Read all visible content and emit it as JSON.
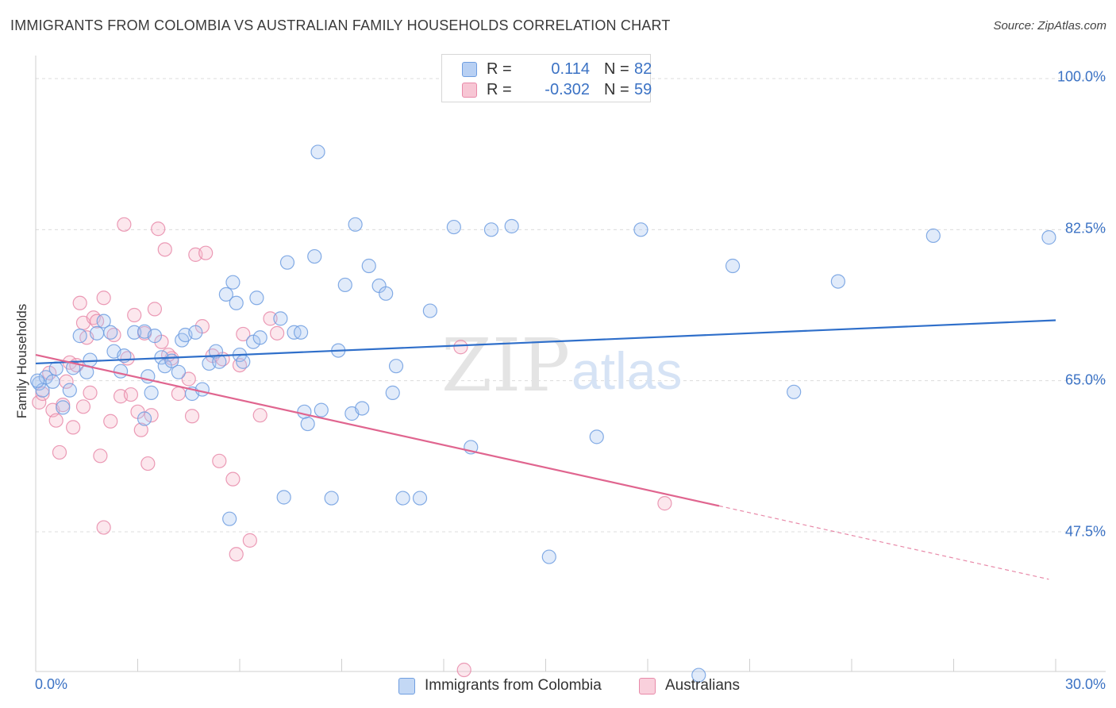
{
  "title": "IMMIGRANTS FROM COLOMBIA VS AUSTRALIAN FAMILY HOUSEHOLDS CORRELATION CHART",
  "source": "Source: ZipAtlas.com",
  "watermark": {
    "zip": "ZIP",
    "atlas": "atlas"
  },
  "legend": {
    "rows": [
      {
        "r_label": "R =",
        "r_value": "0.114",
        "n_label": "N =",
        "n_value": "82",
        "color": "#6f9ee0"
      },
      {
        "r_label": "R =",
        "r_value": "-0.302",
        "n_label": "N =",
        "n_value": "59",
        "color": "#e88aa9"
      }
    ]
  },
  "chart_data": {
    "type": "scatter",
    "xlabel": "",
    "ylabel": "Family Households",
    "xlim": [
      0,
      30
    ],
    "ylim": [
      30,
      100
    ],
    "x_tick_labels": [
      "0.0%",
      "30.0%"
    ],
    "y_ticks": [
      47.5,
      65.0,
      82.5,
      100.0
    ],
    "y_tick_labels": [
      "47.5%",
      "65.0%",
      "82.5%",
      "100.0%"
    ],
    "grid": "horizontal dashed",
    "legend_position": "bottom-center",
    "series": [
      {
        "name": "Immigrants from Colombia",
        "color": "#6f9ee0",
        "trend": {
          "x": [
            0,
            30
          ],
          "y": [
            67.0,
            72.0
          ]
        },
        "points": [
          [
            0.1,
            64.7
          ],
          [
            0.2,
            63.9
          ],
          [
            0.3,
            65.4
          ],
          [
            0.5,
            64.9
          ],
          [
            0.6,
            66.4
          ],
          [
            0.8,
            61.9
          ],
          [
            1.0,
            63.9
          ],
          [
            1.1,
            66.5
          ],
          [
            1.3,
            70.2
          ],
          [
            1.5,
            66.0
          ],
          [
            1.6,
            67.4
          ],
          [
            1.8,
            70.5
          ],
          [
            2.0,
            71.9
          ],
          [
            2.2,
            70.6
          ],
          [
            2.3,
            68.4
          ],
          [
            2.5,
            66.1
          ],
          [
            2.6,
            67.9
          ],
          [
            2.9,
            70.6
          ],
          [
            3.2,
            70.7
          ],
          [
            3.2,
            60.6
          ],
          [
            3.3,
            65.5
          ],
          [
            3.4,
            63.6
          ],
          [
            3.5,
            70.2
          ],
          [
            3.7,
            67.7
          ],
          [
            3.8,
            66.7
          ],
          [
            4.0,
            67.3
          ],
          [
            4.2,
            66.0
          ],
          [
            4.3,
            69.7
          ],
          [
            4.4,
            70.3
          ],
          [
            4.6,
            63.5
          ],
          [
            4.7,
            70.6
          ],
          [
            4.9,
            64.0
          ],
          [
            5.1,
            67.0
          ],
          [
            5.3,
            68.4
          ],
          [
            5.4,
            67.2
          ],
          [
            5.6,
            75.0
          ],
          [
            5.7,
            49.0
          ],
          [
            5.8,
            76.4
          ],
          [
            5.9,
            74.0
          ],
          [
            6.0,
            68.0
          ],
          [
            6.1,
            67.2
          ],
          [
            6.4,
            69.5
          ],
          [
            6.5,
            74.6
          ],
          [
            6.6,
            70.0
          ],
          [
            7.2,
            72.2
          ],
          [
            7.3,
            51.5
          ],
          [
            7.4,
            78.7
          ],
          [
            7.6,
            70.6
          ],
          [
            7.8,
            70.6
          ],
          [
            7.9,
            61.4
          ],
          [
            8.0,
            60.0
          ],
          [
            8.2,
            79.4
          ],
          [
            8.4,
            61.6
          ],
          [
            8.3,
            91.5
          ],
          [
            8.7,
            51.4
          ],
          [
            8.9,
            68.5
          ],
          [
            9.1,
            76.1
          ],
          [
            9.3,
            61.2
          ],
          [
            9.6,
            61.8
          ],
          [
            9.4,
            83.1
          ],
          [
            9.8,
            78.3
          ],
          [
            10.1,
            76.0
          ],
          [
            10.3,
            75.1
          ],
          [
            10.5,
            63.6
          ],
          [
            10.6,
            66.7
          ],
          [
            10.8,
            51.4
          ],
          [
            11.3,
            51.4
          ],
          [
            11.6,
            73.1
          ],
          [
            12.3,
            82.8
          ],
          [
            12.8,
            57.3
          ],
          [
            13.4,
            82.5
          ],
          [
            14.0,
            82.9
          ],
          [
            15.1,
            44.6
          ],
          [
            16.5,
            58.5
          ],
          [
            17.8,
            82.5
          ],
          [
            19.5,
            30.9
          ],
          [
            20.5,
            78.3
          ],
          [
            22.3,
            63.7
          ],
          [
            23.6,
            76.5
          ],
          [
            26.4,
            81.8
          ],
          [
            29.8,
            81.6
          ],
          [
            0.05,
            65.0
          ]
        ]
      },
      {
        "name": "Australians",
        "color": "#e88aa9",
        "trend": {
          "x": [
            0,
            20.1
          ],
          "y": [
            68.0,
            50.5
          ]
        },
        "trend_dashed": {
          "x": [
            20.1,
            29.8
          ],
          "y": [
            50.5,
            42.0
          ]
        },
        "points": [
          [
            0.1,
            62.5
          ],
          [
            0.2,
            63.5
          ],
          [
            0.4,
            65.9
          ],
          [
            0.5,
            61.6
          ],
          [
            0.6,
            60.4
          ],
          [
            0.7,
            56.7
          ],
          [
            0.8,
            62.2
          ],
          [
            0.9,
            64.9
          ],
          [
            1.0,
            67.1
          ],
          [
            1.1,
            59.6
          ],
          [
            1.2,
            66.8
          ],
          [
            1.3,
            74.0
          ],
          [
            1.4,
            71.7
          ],
          [
            1.5,
            70.0
          ],
          [
            1.6,
            63.6
          ],
          [
            1.7,
            72.3
          ],
          [
            1.8,
            71.9
          ],
          [
            1.9,
            56.3
          ],
          [
            2.0,
            74.6
          ],
          [
            2.0,
            48.0
          ],
          [
            2.2,
            60.3
          ],
          [
            2.3,
            70.3
          ],
          [
            2.5,
            63.2
          ],
          [
            2.6,
            83.1
          ],
          [
            2.7,
            67.6
          ],
          [
            2.8,
            63.4
          ],
          [
            2.9,
            72.6
          ],
          [
            3.0,
            61.4
          ],
          [
            3.1,
            59.3
          ],
          [
            3.2,
            70.5
          ],
          [
            3.3,
            55.4
          ],
          [
            3.4,
            61.0
          ],
          [
            3.5,
            73.3
          ],
          [
            3.6,
            82.6
          ],
          [
            3.7,
            69.5
          ],
          [
            3.8,
            80.2
          ],
          [
            4.0,
            67.6
          ],
          [
            4.2,
            63.5
          ],
          [
            4.5,
            65.2
          ],
          [
            4.6,
            60.9
          ],
          [
            4.7,
            79.6
          ],
          [
            4.9,
            71.3
          ],
          [
            5.0,
            79.8
          ],
          [
            5.2,
            67.9
          ],
          [
            5.4,
            55.7
          ],
          [
            5.8,
            53.6
          ],
          [
            5.9,
            44.9
          ],
          [
            6.0,
            66.8
          ],
          [
            6.1,
            70.4
          ],
          [
            6.3,
            46.5
          ],
          [
            6.6,
            61.0
          ],
          [
            6.9,
            72.2
          ],
          [
            7.1,
            70.5
          ],
          [
            5.5,
            67.5
          ],
          [
            3.9,
            68.0
          ],
          [
            12.5,
            68.9
          ],
          [
            12.6,
            31.5
          ],
          [
            18.5,
            50.8
          ],
          [
            1.4,
            62.0
          ]
        ]
      }
    ]
  }
}
